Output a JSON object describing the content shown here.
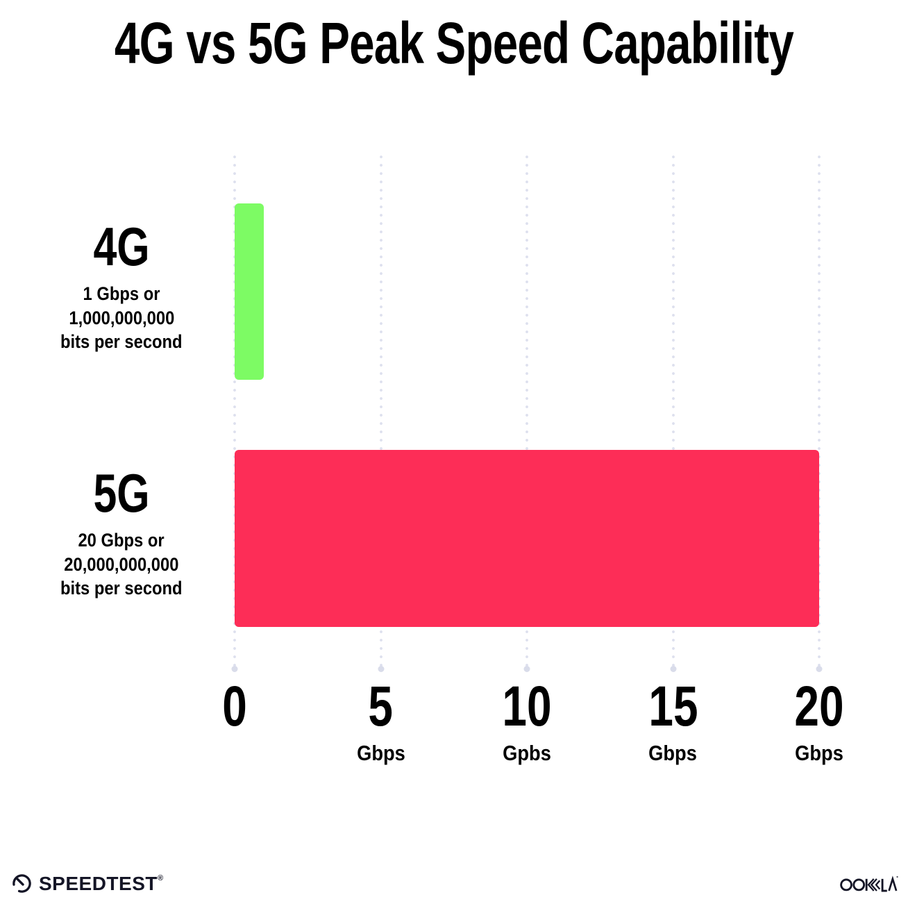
{
  "title": "4G vs 5G Peak Speed Capability",
  "chart_data": {
    "type": "bar",
    "orientation": "horizontal",
    "title": "4G vs 5G Peak Speed Capability",
    "categories": [
      "4G",
      "5G"
    ],
    "values": [
      1,
      20
    ],
    "unit": "Gbps",
    "xlim": [
      0,
      20
    ],
    "grid": "vertical dotted gridlines at 0, 5, 10, 15, 20",
    "grid_color": "#dde0ee",
    "background_color": "#ffffff",
    "bars": [
      {
        "label": "4G",
        "sublabel_line1": "1 Gbps or",
        "sublabel_line2": "1,000,000,000",
        "sublabel_line3": "bits per second",
        "value": 1,
        "color": "#7dfb64"
      },
      {
        "label": "5G",
        "sublabel_line1": "20 Gbps or",
        "sublabel_line2": "20,000,000,000",
        "sublabel_line3": "bits per second",
        "value": 20,
        "color": "#fd2d57"
      }
    ],
    "x_ticks": [
      {
        "value": "0",
        "unit": ""
      },
      {
        "value": "5",
        "unit": "Gbps"
      },
      {
        "value": "10",
        "unit": "Gpbs"
      },
      {
        "value": "15",
        "unit": "Gbps"
      },
      {
        "value": "20",
        "unit": "Gbps"
      }
    ]
  },
  "footer": {
    "speedtest_label": "SPEEDTEST",
    "speedtest_trademark": "®",
    "ookla_label": "OOKLA"
  }
}
